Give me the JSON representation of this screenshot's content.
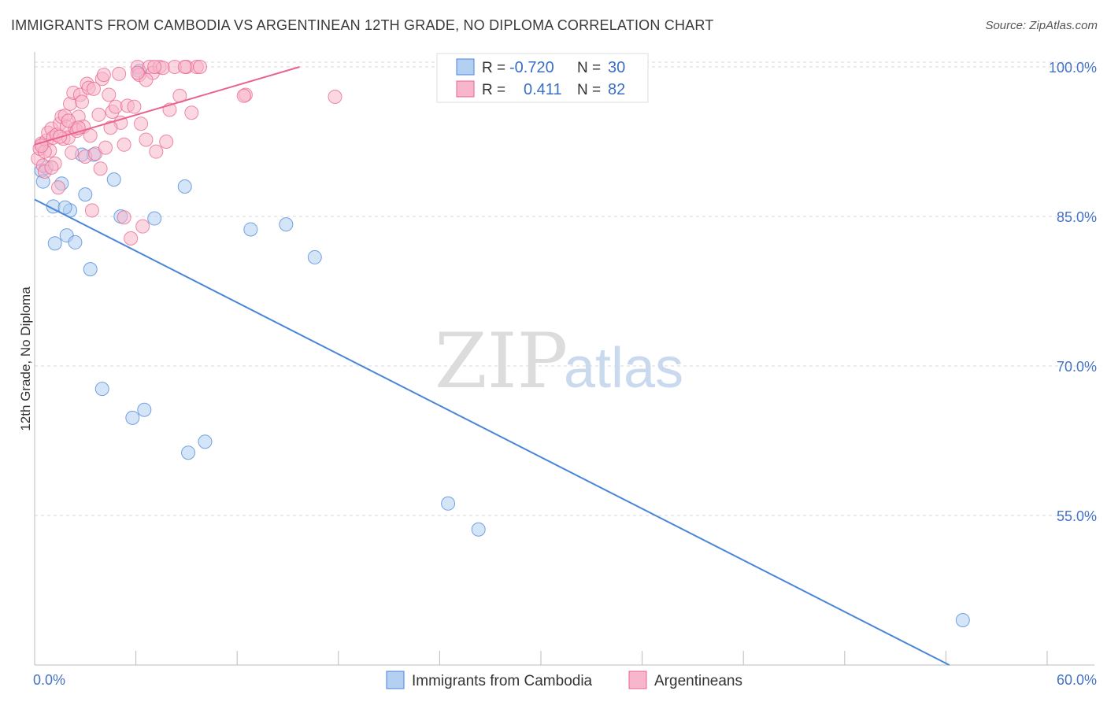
{
  "header": {
    "title": "IMMIGRANTS FROM CAMBODIA VS ARGENTINEAN 12TH GRADE, NO DIPLOMA CORRELATION CHART",
    "source": "Source: ZipAtlas.com"
  },
  "watermark": {
    "zip": "ZIP",
    "atlas": "atlas"
  },
  "legend_box": {
    "rows": [
      {
        "r_label": "R =",
        "r_value": "-0.720",
        "n_label": "N =",
        "n_value": "30",
        "color": "#a8c8f0"
      },
      {
        "r_label": "R =",
        "r_value": "0.411",
        "n_label": "N =",
        "n_value": "82",
        "color": "#f7b6cb"
      }
    ]
  },
  "chart_data": {
    "type": "scatter",
    "title": "IMMIGRANTS FROM CAMBODIA VS ARGENTINEAN 12TH GRADE, NO DIPLOMA CORRELATION CHART",
    "xlabel": "",
    "ylabel": "12th Grade, No Diploma",
    "xlim": [
      0,
      60
    ],
    "ylim": [
      40,
      101.5
    ],
    "x_tick_labels": [
      "0.0%",
      "60.0%"
    ],
    "y_ticks": [
      55,
      70,
      85,
      100
    ],
    "y_tick_labels": [
      "55.0%",
      "70.0%",
      "85.0%",
      "100.0%"
    ],
    "grid": true,
    "legend_position": "bottom",
    "series": [
      {
        "name": "Immigrants from Cambodia",
        "color": "#4a86d8",
        "fill": "#b3cff2",
        "points": [
          [
            0.4,
            89.6
          ],
          [
            0.7,
            89.9
          ],
          [
            0.5,
            88.5
          ],
          [
            1.1,
            86.0
          ],
          [
            1.6,
            88.3
          ],
          [
            1.2,
            82.3
          ],
          [
            1.9,
            83.1
          ],
          [
            2.1,
            85.6
          ],
          [
            2.4,
            82.4
          ],
          [
            1.8,
            85.9
          ],
          [
            3.0,
            87.2
          ],
          [
            2.8,
            91.2
          ],
          [
            3.5,
            91.2
          ],
          [
            3.3,
            79.7
          ],
          [
            4.7,
            88.7
          ],
          [
            5.1,
            85.0
          ],
          [
            7.1,
            84.8
          ],
          [
            6.2,
            99.6
          ],
          [
            8.9,
            88.0
          ],
          [
            12.8,
            83.7
          ],
          [
            14.9,
            84.2
          ],
          [
            16.6,
            80.9
          ],
          [
            4.0,
            67.7
          ],
          [
            5.8,
            64.8
          ],
          [
            6.5,
            65.6
          ],
          [
            9.1,
            61.3
          ],
          [
            10.1,
            62.4
          ],
          [
            24.5,
            56.2
          ],
          [
            26.3,
            53.6
          ],
          [
            55.0,
            44.5
          ]
        ],
        "trend": {
          "x": [
            0.0,
            54.2
          ],
          "y": [
            86.7,
            40.0
          ]
        }
      },
      {
        "name": "Argentineans",
        "color": "#e8648f",
        "fill": "#f7b6cb",
        "points": [
          [
            0.2,
            90.8
          ],
          [
            0.3,
            91.8
          ],
          [
            0.4,
            92.3
          ],
          [
            0.5,
            90.1
          ],
          [
            0.6,
            89.5
          ],
          [
            0.7,
            92.6
          ],
          [
            0.8,
            93.4
          ],
          [
            0.9,
            91.6
          ],
          [
            1.0,
            93.8
          ],
          [
            1.1,
            92.9
          ],
          [
            1.2,
            90.3
          ],
          [
            1.3,
            93.2
          ],
          [
            1.4,
            87.9
          ],
          [
            1.5,
            94.3
          ],
          [
            1.6,
            95.0
          ],
          [
            1.7,
            92.8
          ],
          [
            1.8,
            95.1
          ],
          [
            1.9,
            94.0
          ],
          [
            2.0,
            92.9
          ],
          [
            2.1,
            96.3
          ],
          [
            2.2,
            91.4
          ],
          [
            2.3,
            97.4
          ],
          [
            2.4,
            93.8
          ],
          [
            2.5,
            93.6
          ],
          [
            2.6,
            95.0
          ],
          [
            2.7,
            97.2
          ],
          [
            2.8,
            96.5
          ],
          [
            2.9,
            94.0
          ],
          [
            3.0,
            91.0
          ],
          [
            3.1,
            98.3
          ],
          [
            3.2,
            97.9
          ],
          [
            3.3,
            93.1
          ],
          [
            3.4,
            85.6
          ],
          [
            3.6,
            91.3
          ],
          [
            3.8,
            95.2
          ],
          [
            4.0,
            98.8
          ],
          [
            4.2,
            91.9
          ],
          [
            4.4,
            97.2
          ],
          [
            4.6,
            95.5
          ],
          [
            4.8,
            96.0
          ],
          [
            5.0,
            99.3
          ],
          [
            5.1,
            94.4
          ],
          [
            5.3,
            92.2
          ],
          [
            5.5,
            96.1
          ],
          [
            5.7,
            82.8
          ],
          [
            5.9,
            96.0
          ],
          [
            6.1,
            100.0
          ],
          [
            6.2,
            99.2
          ],
          [
            6.4,
            84.0
          ],
          [
            6.6,
            92.7
          ],
          [
            6.8,
            100.0
          ],
          [
            7.0,
            99.4
          ],
          [
            7.2,
            91.5
          ],
          [
            7.4,
            100.0
          ],
          [
            7.6,
            99.9
          ],
          [
            7.8,
            92.5
          ],
          [
            8.0,
            95.7
          ],
          [
            8.3,
            100.0
          ],
          [
            8.6,
            97.1
          ],
          [
            9.0,
            100.0
          ],
          [
            9.3,
            95.4
          ],
          [
            9.6,
            100.0
          ],
          [
            12.5,
            97.2
          ],
          [
            17.8,
            97.0
          ],
          [
            2.0,
            94.6
          ],
          [
            1.5,
            93.0
          ],
          [
            3.9,
            89.8
          ],
          [
            6.3,
            94.3
          ],
          [
            1.0,
            89.9
          ],
          [
            0.6,
            91.5
          ],
          [
            4.5,
            93.9
          ],
          [
            5.3,
            84.9
          ],
          [
            6.6,
            98.7
          ],
          [
            7.1,
            100.0
          ],
          [
            8.9,
            100.0
          ],
          [
            4.1,
            99.2
          ],
          [
            6.1,
            99.4
          ],
          [
            3.5,
            97.8
          ],
          [
            9.8,
            100.0
          ],
          [
            0.4,
            92.1
          ],
          [
            12.4,
            97.1
          ],
          [
            2.6,
            93.9
          ]
        ],
        "trend": {
          "x": [
            0.0,
            15.7
          ],
          "y": [
            92.2,
            100.0
          ]
        }
      }
    ]
  },
  "bottom_legend": {
    "items": [
      {
        "label": "Immigrants from Cambodia",
        "color": "#b3cff2",
        "stroke": "#4a86d8"
      },
      {
        "label": "Argentineans",
        "color": "#f7b6cb",
        "stroke": "#e8648f"
      }
    ]
  }
}
